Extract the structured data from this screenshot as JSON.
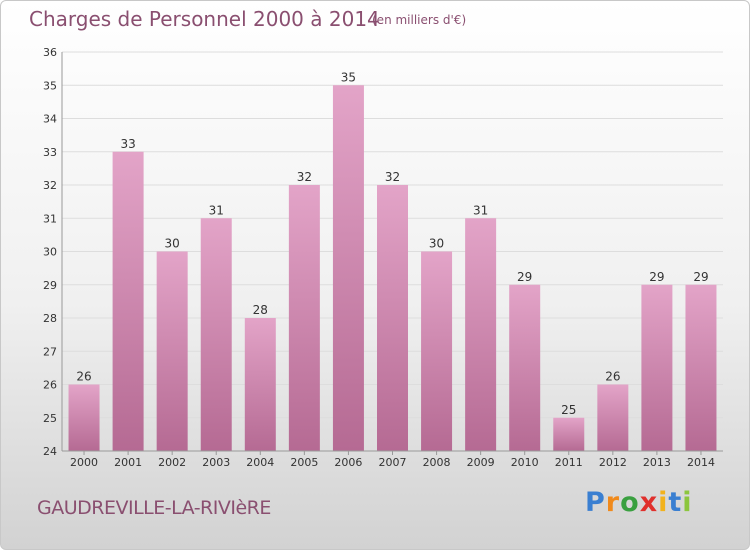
{
  "header": {
    "title": "Charges de Personnel 2000 à 2014",
    "unit_note": "(en milliers d'€)"
  },
  "footer": {
    "commune": "GAUDREVILLE-LA-RIVIèRE",
    "logo_text": "Proxiti"
  },
  "colors": {
    "bar_top": "#e3a4c8",
    "bar_bottom": "#b56a93",
    "text": "#8a4f70",
    "axis_text": "#333333"
  },
  "chart_data": {
    "type": "bar",
    "title": "Charges de Personnel 2000 à 2014",
    "subtitle": "(en milliers d'€)",
    "categories": [
      "2000",
      "2001",
      "2002",
      "2003",
      "2004",
      "2005",
      "2006",
      "2007",
      "2008",
      "2009",
      "2010",
      "2011",
      "2012",
      "2013",
      "2014"
    ],
    "values": [
      26,
      33,
      30,
      31,
      28,
      32,
      35,
      32,
      30,
      31,
      29,
      25,
      26,
      29,
      29
    ],
    "ylim": [
      24,
      36
    ],
    "yticks": [
      24,
      25,
      26,
      27,
      28,
      29,
      30,
      31,
      32,
      33,
      34,
      35,
      36
    ],
    "grid": "horizontal",
    "data_labels": true,
    "xlabel": "",
    "ylabel": ""
  }
}
